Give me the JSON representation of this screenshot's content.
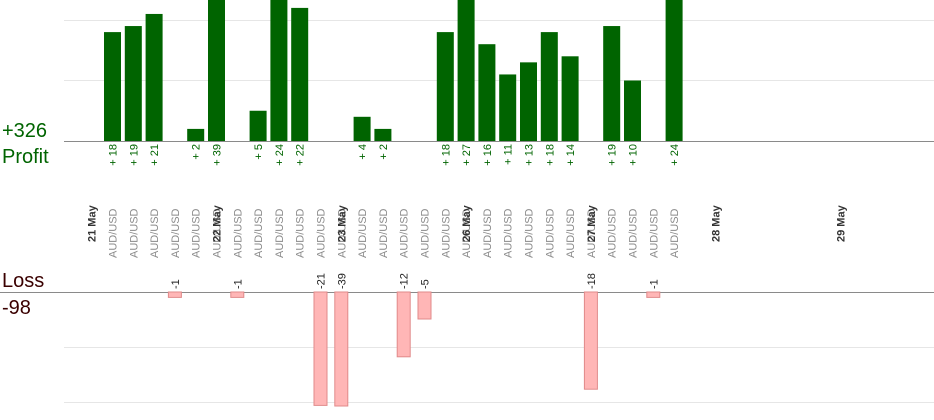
{
  "summary": {
    "profit_total": "+326",
    "profit_label": "Profit",
    "loss_label": "Loss",
    "loss_total": "-98"
  },
  "colors": {
    "profit_bar": "#006400",
    "profit_text": "#006400",
    "loss_bar": "#ffb6b6",
    "loss_bar_border": "#e08a8a",
    "loss_text": "#3a0000"
  },
  "chart_data": {
    "type": "bar",
    "grid": true,
    "profit_ylim": [
      0,
      24
    ],
    "loss_ylim": [
      0,
      35
    ],
    "dates": [
      {
        "label": "21 May",
        "start": 0
      },
      {
        "label": "22 May",
        "start": 6
      },
      {
        "label": "23 May",
        "start": 12
      },
      {
        "label": "26 May",
        "start": 18
      },
      {
        "label": "27 May",
        "start": 24
      },
      {
        "label": "28 May",
        "start": 30
      },
      {
        "label": "29 May",
        "start": 36
      }
    ],
    "trades": [
      {
        "pair": "AUD/USD",
        "profit": 18
      },
      {
        "pair": "AUD/USD",
        "profit": 19
      },
      {
        "pair": "AUD/USD",
        "profit": 21
      },
      {
        "pair": "AUD/USD",
        "loss": -1
      },
      {
        "pair": "AUD/USD",
        "profit": 2
      },
      {
        "pair": "AUD/USD",
        "profit": 39
      },
      {
        "pair": "AUD/USD",
        "loss": -1
      },
      {
        "pair": "AUD/USD",
        "profit": 5
      },
      {
        "pair": "AUD/USD",
        "profit": 24
      },
      {
        "pair": "AUD/USD",
        "profit": 22
      },
      {
        "pair": "AUD/USD",
        "loss": -21
      },
      {
        "pair": "AUD/USD",
        "loss": -39
      },
      {
        "pair": "AUD/USD",
        "profit": 4
      },
      {
        "pair": "AUD/USD",
        "profit": 2
      },
      {
        "pair": "AUD/USD",
        "loss": -12
      },
      {
        "pair": "AUD/USD",
        "loss": -5
      },
      {
        "pair": "AUD/USD",
        "profit": 18
      },
      {
        "pair": "AUD/USD",
        "profit": 27
      },
      {
        "pair": "AUD/USD",
        "profit": 16
      },
      {
        "pair": "AUD/USD",
        "profit": 11
      },
      {
        "pair": "AUD/USD",
        "profit": 13
      },
      {
        "pair": "AUD/USD",
        "profit": 18
      },
      {
        "pair": "AUD/USD",
        "profit": 14
      },
      {
        "pair": "AUD/USD",
        "loss": -18
      },
      {
        "pair": "AUD/USD",
        "profit": 19
      },
      {
        "pair": "AUD/USD",
        "profit": 10
      },
      {
        "pair": "AUD/USD",
        "loss": -1
      },
      {
        "pair": "AUD/USD",
        "profit": 24
      }
    ]
  }
}
